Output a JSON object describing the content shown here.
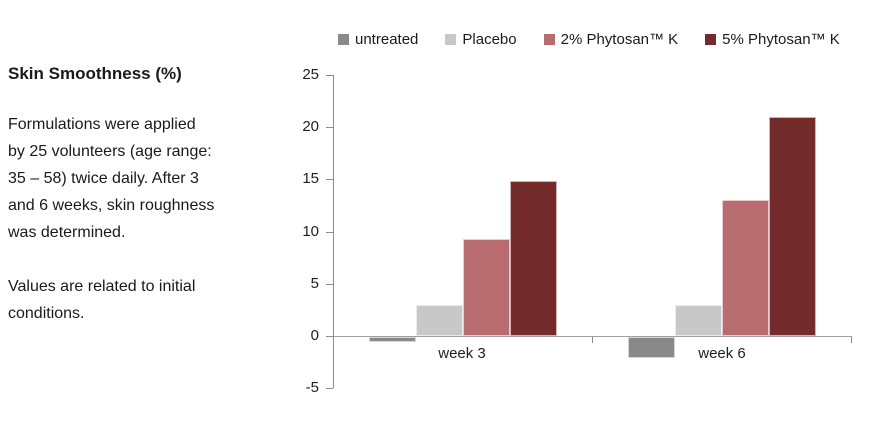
{
  "info_panel": {
    "title": "Skin Smoothness (%)",
    "paragraph1": "Formulations were applied\nby 25 volunteers (age range:\n35 – 58) twice daily. After 3\nand 6 weeks, skin roughness\nwas determined.",
    "paragraph2": "Values are related to initial\nconditions."
  },
  "chart_data": {
    "type": "bar",
    "title": "Skin Smoothness (%)",
    "categories": [
      "week 3",
      "week 6"
    ],
    "series": [
      {
        "name": "untreated",
        "color": "#898989",
        "values": [
          -0.5,
          -2
        ]
      },
      {
        "name": "Placebo",
        "color": "#C8C8C8",
        "values": [
          3,
          3
        ]
      },
      {
        "name": "2% Phytosan™ K",
        "color": "#B96C6F",
        "values": [
          9.3,
          13
        ]
      },
      {
        "name": "5% Phytosan™ K",
        "color": "#742B2C",
        "values": [
          14.8,
          21
        ]
      }
    ],
    "xlabel": "",
    "ylabel": "",
    "ylim": [
      -5,
      25
    ],
    "yticks": [
      -5,
      0,
      5,
      10,
      15,
      20,
      25
    ],
    "legend_position": "top",
    "grid": false,
    "axis_color": "#8C8C8C",
    "baseline_color": "#A0A0A0",
    "text_color": "#1f1f1f"
  }
}
